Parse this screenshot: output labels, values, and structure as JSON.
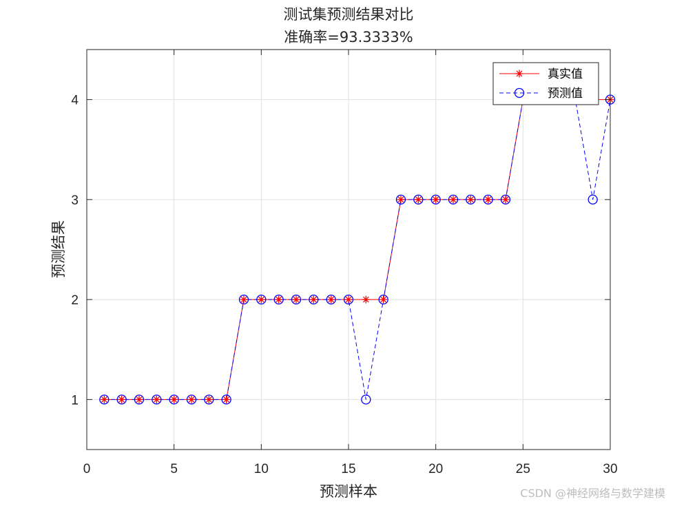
{
  "chart_data": {
    "type": "line",
    "title": "测试集预测结果对比",
    "subtitle": "准确率=93.3333%",
    "xlabel": "预测样本",
    "ylabel": "预测结果",
    "xlim": [
      0,
      30
    ],
    "ylim": [
      0.5,
      4.5
    ],
    "xticks": [
      0,
      5,
      10,
      15,
      20,
      25,
      30
    ],
    "yticks": [
      1,
      2,
      3,
      4
    ],
    "grid": true,
    "legend_position": "top-right",
    "x": [
      1,
      2,
      3,
      4,
      5,
      6,
      7,
      8,
      9,
      10,
      11,
      12,
      13,
      14,
      15,
      16,
      17,
      18,
      19,
      20,
      21,
      22,
      23,
      24,
      25,
      26,
      27,
      28,
      29,
      30
    ],
    "series": [
      {
        "name": "真实值",
        "color": "#ff0000",
        "line_style": "solid",
        "marker": "asterisk",
        "values": [
          1,
          1,
          1,
          1,
          1,
          1,
          1,
          1,
          2,
          2,
          2,
          2,
          2,
          2,
          2,
          2,
          2,
          3,
          3,
          3,
          3,
          3,
          3,
          3,
          4,
          4,
          4,
          4,
          4,
          4
        ]
      },
      {
        "name": "预测值",
        "color": "#0000ff",
        "line_style": "dashed",
        "marker": "circle",
        "values": [
          1,
          1,
          1,
          1,
          1,
          1,
          1,
          1,
          2,
          2,
          2,
          2,
          2,
          2,
          2,
          1,
          2,
          3,
          3,
          3,
          3,
          3,
          3,
          3,
          4,
          4,
          4,
          4,
          3,
          4
        ]
      }
    ]
  },
  "watermark": "CSDN @神经网络与数学建模"
}
